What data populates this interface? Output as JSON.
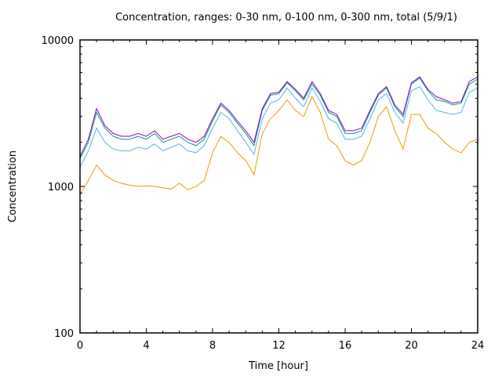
{
  "chart_data": {
    "type": "line",
    "title": "Concentration, ranges: 0-30 nm, 0-100 nm, 0-300 nm, total (5/9/1)",
    "xlabel": "Time [hour]",
    "ylabel": "Concentration",
    "xlim": [
      0,
      24
    ],
    "ylim": [
      100,
      10000
    ],
    "yscale": "log",
    "grid": false,
    "legend": "none",
    "xticks": [
      "0",
      "4",
      "8",
      "12",
      "16",
      "20",
      "24"
    ],
    "yticks": [
      "100",
      "1000",
      "10000"
    ],
    "x": [
      0,
      0.5,
      1,
      1.5,
      2,
      2.5,
      3,
      3.5,
      4,
      4.5,
      5,
      5.5,
      6,
      6.5,
      7,
      7.5,
      8,
      8.5,
      9,
      9.5,
      10,
      10.5,
      11,
      11.5,
      12,
      12.5,
      13,
      13.5,
      14,
      14.5,
      15,
      15.5,
      16,
      16.5,
      17,
      17.5,
      18,
      18.5,
      19,
      19.5,
      20,
      20.5,
      21,
      21.5,
      22,
      22.5,
      23,
      23.5,
      24
    ],
    "series": [
      {
        "name": "total",
        "color": "#9400d3",
        "values": [
          1600,
          2100,
          3400,
          2600,
          2300,
          2200,
          2200,
          2300,
          2200,
          2400,
          2100,
          2200,
          2300,
          2100,
          2000,
          2200,
          2900,
          3700,
          3300,
          2800,
          2400,
          2000,
          3400,
          4300,
          4400,
          5200,
          4600,
          4000,
          5200,
          4300,
          3300,
          3100,
          2400,
          2400,
          2500,
          3300,
          4300,
          4800,
          3600,
          3100,
          5100,
          5600,
          4600,
          4100,
          3900,
          3700,
          3800,
          5200,
          5600
        ]
      },
      {
        "name": "0-300 nm",
        "color": "#009e73",
        "values": [
          1550,
          2000,
          3200,
          2500,
          2200,
          2100,
          2100,
          2200,
          2100,
          2300,
          2000,
          2100,
          2200,
          2000,
          1900,
          2100,
          2800,
          3600,
          3200,
          2700,
          2300,
          1900,
          3300,
          4200,
          4300,
          5100,
          4500,
          3900,
          5000,
          4200,
          3200,
          3000,
          2300,
          2300,
          2400,
          3200,
          4200,
          4700,
          3500,
          3000,
          5000,
          5500,
          4500,
          3900,
          3800,
          3600,
          3700,
          5000,
          5400
        ]
      },
      {
        "name": "0-100 nm",
        "color": "#56b4e9",
        "values": [
          1350,
          1750,
          2500,
          2000,
          1800,
          1750,
          1750,
          1850,
          1800,
          1950,
          1750,
          1850,
          1950,
          1750,
          1700,
          1900,
          2500,
          3200,
          2900,
          2400,
          2000,
          1650,
          2900,
          3700,
          3900,
          4700,
          4000,
          3500,
          4700,
          3800,
          2900,
          2700,
          2100,
          2100,
          2200,
          2900,
          3900,
          4300,
          3200,
          2700,
          4500,
          4800,
          3900,
          3300,
          3200,
          3100,
          3200,
          4400,
          4700
        ]
      },
      {
        "name": "0-30 nm",
        "color": "#e69f00",
        "values": [
          880,
          1100,
          1400,
          1200,
          1100,
          1050,
          1020,
          1000,
          1010,
          1000,
          980,
          960,
          1050,
          950,
          1000,
          1100,
          1700,
          2200,
          2000,
          1700,
          1500,
          1200,
          2300,
          2900,
          3300,
          3900,
          3300,
          3000,
          4100,
          3200,
          2100,
          1900,
          1500,
          1400,
          1500,
          2000,
          3000,
          3500,
          2400,
          1800,
          3100,
          3100,
          2500,
          2300,
          2000,
          1800,
          1700,
          2000,
          2100
        ]
      }
    ]
  }
}
